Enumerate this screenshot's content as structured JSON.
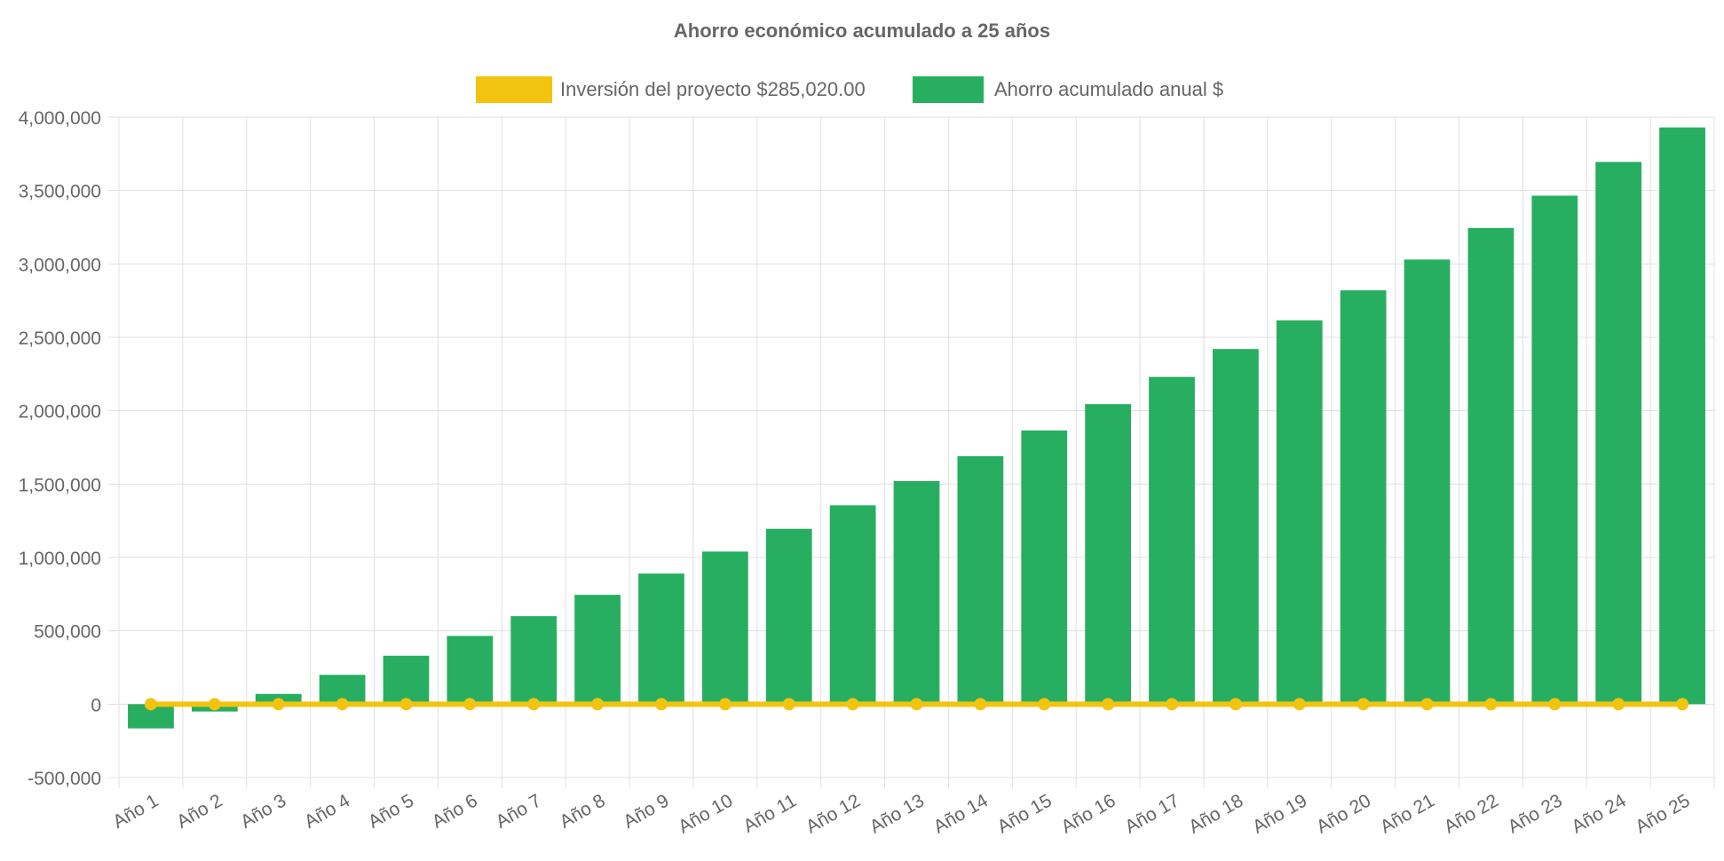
{
  "chart_data": {
    "type": "bar",
    "title": "Ahorro económico acumulado a 25 años",
    "categories": [
      "Año 1",
      "Año 2",
      "Año 3",
      "Año 4",
      "Año 5",
      "Año 6",
      "Año 7",
      "Año 8",
      "Año 9",
      "Año 10",
      "Año 11",
      "Año 12",
      "Año 13",
      "Año 14",
      "Año 15",
      "Año 16",
      "Año 17",
      "Año 18",
      "Año 19",
      "Año 20",
      "Año 21",
      "Año 22",
      "Año 23",
      "Año 24",
      "Año 25"
    ],
    "series": [
      {
        "name": "Inversión del proyecto $285,020.00",
        "type": "line",
        "color": "#f2c40f",
        "values": [
          0,
          0,
          0,
          0,
          0,
          0,
          0,
          0,
          0,
          0,
          0,
          0,
          0,
          0,
          0,
          0,
          0,
          0,
          0,
          0,
          0,
          0,
          0,
          0,
          0
        ]
      },
      {
        "name": "Ahorro acumulado anual $",
        "type": "bar",
        "color": "#27ae60",
        "values": [
          -165000,
          -50000,
          70000,
          200000,
          330000,
          465000,
          600000,
          745000,
          890000,
          1040000,
          1195000,
          1355000,
          1520000,
          1690000,
          1865000,
          2045000,
          2230000,
          2420000,
          2615000,
          2820000,
          3030000,
          3245000,
          3465000,
          3695000,
          3930000
        ]
      }
    ],
    "xlabel": "",
    "ylabel": "",
    "ylim": [
      -500000,
      4000000
    ],
    "yticks": [
      "4,000,000",
      "3,500,000",
      "3,000,000",
      "2,500,000",
      "2,000,000",
      "1,500,000",
      "1,000,000",
      "500,000",
      "0",
      "-500,000"
    ],
    "ytick_values": [
      4000000,
      3500000,
      3000000,
      2500000,
      2000000,
      1500000,
      1000000,
      500000,
      0,
      -500000
    ],
    "grid": true,
    "legend_position": "top-center",
    "grid_color": "#e0e0e0",
    "text_color": "#666666"
  }
}
